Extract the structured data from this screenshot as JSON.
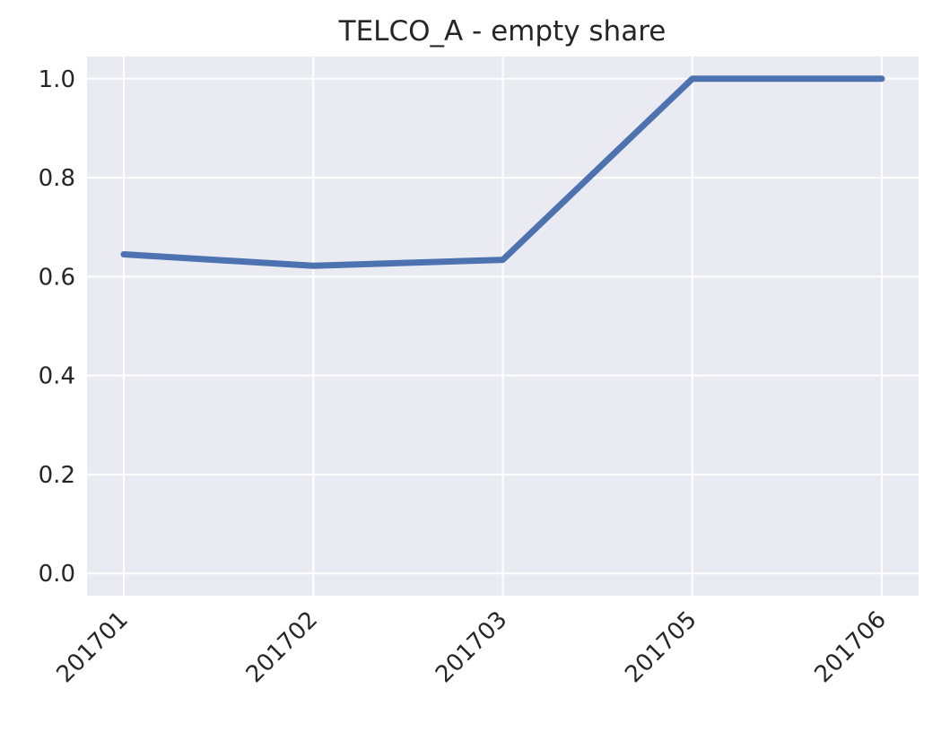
{
  "chart_data": {
    "type": "line",
    "title": "TELCO_A - empty share",
    "xlabel": "",
    "ylabel": "",
    "categories": [
      "201701",
      "201702",
      "201703",
      "201705",
      "201706"
    ],
    "series": [
      {
        "values": [
          0.645,
          0.622,
          0.634,
          1.0,
          1.0
        ]
      }
    ],
    "ylim": [
      -0.045,
      1.045
    ],
    "yticks": [
      "0.0",
      "0.2",
      "0.4",
      "0.6",
      "0.8",
      "1.0"
    ],
    "grid": true,
    "colors": {
      "background": "#EAEAF2",
      "grid": "#FFFFFF",
      "line": "#4C72B0",
      "text": "#262626"
    }
  }
}
